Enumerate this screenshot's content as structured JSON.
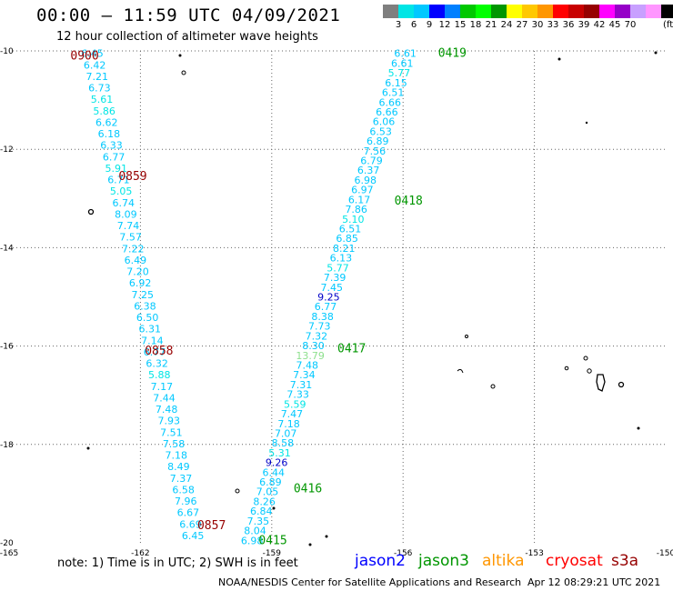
{
  "header": {
    "title": "00:00 – 11:59 UTC 04/09/2021",
    "subtitle": "12 hour collection of altimeter wave heights"
  },
  "colorbar": {
    "colors": [
      "#7f7f7f",
      "#00e5e5",
      "#00c8ff",
      "#0000ff",
      "#0080ff",
      "#00c800",
      "#00ff00",
      "#009600",
      "#ffff00",
      "#ffc800",
      "#ff9600",
      "#ff0000",
      "#c80000",
      "#960000",
      "#ff00ff",
      "#9600c8",
      "#c8a0ff",
      "#ff96ff",
      "#000000"
    ],
    "labels": [
      "3",
      "6",
      "9",
      "12",
      "15",
      "18",
      "21",
      "24",
      "27",
      "30",
      "33",
      "36",
      "39",
      "42",
      "45",
      "70",
      "(ft)"
    ]
  },
  "axes": {
    "x_labels": [
      "-165",
      "-162",
      "-159",
      "-156",
      "-153",
      "-150"
    ],
    "y_labels": [
      "-10",
      "-12",
      "-14",
      "-16",
      "-18",
      "-20"
    ]
  },
  "map_data": {
    "lon_range": [
      -165,
      -150
    ],
    "lat_range": [
      -20,
      -10
    ],
    "tracks": [
      {
        "satellite": "cryosat",
        "values": [
          "6.45",
          "6.42",
          "7.21",
          "6.73",
          "5.61",
          "5.86",
          "6.62",
          "6.18",
          "6.33",
          "6.77",
          "5.91",
          "6.71",
          "5.05",
          "6.74",
          "8.09",
          "7.74",
          "7.57",
          "7.22",
          "6.49",
          "7.20",
          "6.92",
          "7.25",
          "6.38",
          "6.50",
          "6.31",
          "7.14",
          "6.77",
          "6.32",
          "5.88",
          "7.17",
          "7.44",
          "7.48",
          "7.93",
          "7.51",
          "7.58",
          "7.18",
          "8.49",
          "7.37",
          "6.58",
          "7.96",
          "6.67",
          "6.69",
          "6.45"
        ],
        "times": [
          {
            "label": "0900",
            "lon": -163.6,
            "lat": -10.1
          },
          {
            "label": "0859",
            "lon": -162.5,
            "lat": -12.55
          },
          {
            "label": "0858",
            "lon": -161.9,
            "lat": -16.1
          },
          {
            "label": "0857",
            "lon": -160.7,
            "lat": -19.65
          }
        ]
      },
      {
        "satellite": "jason3",
        "values": [
          "6.61",
          "6.61",
          "5.77",
          "6.15",
          "6.51",
          "6.66",
          "6.66",
          "6.06",
          "6.53",
          "6.89",
          "7.56",
          "6.79",
          "6.37",
          "6.98",
          "6.97",
          "6.17",
          "7.86",
          "5.10",
          "6.51",
          "6.85",
          "8.21",
          "6.13",
          "5.77",
          "7.39",
          "7.45",
          "9.25",
          "6.77",
          "8.38",
          "7.73",
          "7.32",
          "8.30",
          "13.79",
          "7.48",
          "7.34",
          "7.31",
          "7.33",
          "5.59",
          "7.47",
          "7.18",
          "7.07",
          "8.58",
          "5.31",
          "9.26",
          "6.44",
          "6.89",
          "7.05",
          "8.26",
          "6.84",
          "7.35",
          "8.04",
          "6.98"
        ],
        "times": [
          {
            "label": "0419",
            "lon": -155.2,
            "lat": -10.05
          },
          {
            "label": "0418",
            "lon": -156.2,
            "lat": -13.05
          },
          {
            "label": "0417",
            "lon": -157.5,
            "lat": -16.05
          },
          {
            "label": "0416",
            "lon": -158.5,
            "lat": -18.9
          },
          {
            "label": "0415",
            "lon": -159.3,
            "lat": -19.95
          }
        ]
      }
    ]
  },
  "note": "note:  1) Time is in UTC;  2) SWH is in feet",
  "satellites": [
    {
      "name": "jason2",
      "color": "#0000ff"
    },
    {
      "name": "jason3",
      "color": "#009600"
    },
    {
      "name": "altika",
      "color": "#ff9600"
    },
    {
      "name": "cryosat",
      "color": "#ff0000"
    },
    {
      "name": "s3a",
      "color": "#960000"
    }
  ],
  "footer": {
    "credit": "NOAA/NESDIS Center for Satellite Applications and Research",
    "timestamp": "Apr 12 08:29:21 UTC 2021"
  }
}
